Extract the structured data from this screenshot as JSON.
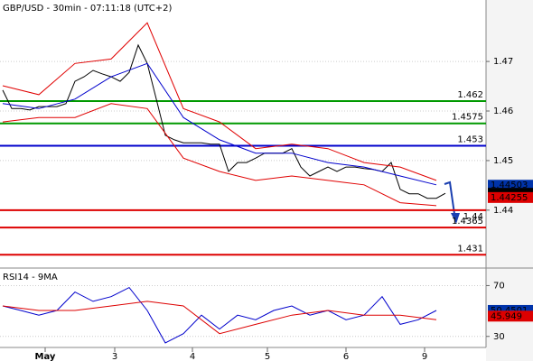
{
  "chart_data": [
    {
      "type": "line",
      "title": "GBP/USD - 30min - 07:11:18 (UTC+2)",
      "xlim": [
        -0.3,
        53.5
      ],
      "ylim": [
        1.4285,
        1.4824
      ],
      "yticks": [
        1.44,
        1.45,
        1.46,
        1.47
      ],
      "grid": true,
      "series": [
        {
          "color": "#000000",
          "x": [
            0,
            1,
            2,
            3,
            4,
            5,
            6,
            7,
            8,
            9,
            10,
            11,
            12,
            13,
            14,
            15,
            16,
            17,
            18,
            19,
            20,
            21,
            22,
            23,
            24,
            25,
            26,
            27,
            28,
            29,
            30,
            31,
            32,
            33,
            34,
            35,
            36,
            37,
            38,
            39,
            40,
            41,
            42,
            43,
            44,
            45,
            46,
            47,
            48,
            49
          ],
          "values": [
            1.4642,
            1.4605,
            1.4605,
            1.4602,
            1.4609,
            1.4609,
            1.4609,
            1.4615,
            1.466,
            1.4669,
            1.4682,
            1.4675,
            1.4669,
            1.466,
            1.4678,
            1.4733,
            1.4696,
            1.4624,
            1.4551,
            1.4542,
            1.4536,
            1.4536,
            1.4536,
            1.4533,
            1.4533,
            1.4478,
            1.4496,
            1.4496,
            1.4505,
            1.4515,
            1.4515,
            1.4515,
            1.4524,
            1.4487,
            1.4469,
            1.4478,
            1.4487,
            1.4478,
            1.4487,
            1.4487,
            1.4484,
            1.4482,
            1.4478,
            1.4496,
            1.4442,
            1.4433,
            1.4433,
            1.4424,
            1.4424,
            1.4434
          ]
        },
        {
          "color": "#e00000",
          "x": [
            0,
            4,
            8,
            12,
            16,
            20,
            24,
            28,
            32,
            36,
            40,
            44,
            48
          ],
          "values": [
            1.4651,
            1.4633,
            1.4696,
            1.4705,
            1.4778,
            1.4605,
            1.4578,
            1.4524,
            1.4533,
            1.4524,
            1.4496,
            1.4487,
            1.446
          ]
        },
        {
          "color": "#e00000",
          "x": [
            0,
            4,
            8,
            12,
            16,
            20,
            24,
            28,
            32,
            36,
            40,
            44,
            48
          ],
          "values": [
            1.4578,
            1.4587,
            1.4587,
            1.4615,
            1.4605,
            1.4505,
            1.4478,
            1.446,
            1.4469,
            1.446,
            1.4451,
            1.4415,
            1.4409
          ]
        },
        {
          "color": "#0000cc",
          "x": [
            0,
            4,
            8,
            12,
            16,
            20,
            24,
            28,
            32,
            36,
            40,
            44,
            48
          ],
          "values": [
            1.4615,
            1.4605,
            1.4624,
            1.4669,
            1.4696,
            1.4587,
            1.4542,
            1.4515,
            1.4515,
            1.4496,
            1.4487,
            1.4469,
            1.4451
          ]
        }
      ],
      "levels": [
        {
          "value": 1.462,
          "color": "#009900"
        },
        {
          "value": 1.4575,
          "color": "#009900"
        },
        {
          "value": 1.453,
          "color": "#0000cc"
        },
        {
          "value": 1.44,
          "color": "#dd0000"
        },
        {
          "value": 1.4365,
          "color": "#dd0000"
        },
        {
          "value": 1.431,
          "color": "#dd0000"
        }
      ],
      "markers": [
        {
          "value": 1.44503,
          "color": "#0033aa"
        },
        {
          "value": 1.4434,
          "color": "#000000"
        },
        {
          "value": 1.44255,
          "color": "#dd0000"
        }
      ]
    },
    {
      "type": "line",
      "title": "RSI14 - 9MA",
      "xlim": [
        -0.3,
        53.5
      ],
      "ylim": [
        21.3,
        83.1
      ],
      "yticks": [
        30,
        70
      ],
      "grid": true,
      "xticks": [
        {
          "value": 4.7,
          "label": "May"
        },
        {
          "value": 12.4,
          "label": "3"
        },
        {
          "value": 21,
          "label": "4"
        },
        {
          "value": 29.3,
          "label": "5"
        },
        {
          "value": 38,
          "label": "6"
        },
        {
          "value": 46.7,
          "label": "9"
        }
      ],
      "series": [
        {
          "color": "#0000cc",
          "x": [
            0,
            2,
            4,
            6,
            8,
            10,
            12,
            14,
            16,
            18,
            20,
            22,
            24,
            26,
            28,
            30,
            32,
            34,
            36,
            38,
            40,
            42,
            44,
            46,
            48
          ],
          "values": [
            54.0,
            50.4,
            46.7,
            50.4,
            64.9,
            57.6,
            61.3,
            68.5,
            50.4,
            24.9,
            32.2,
            46.7,
            35.8,
            46.7,
            43.1,
            50.4,
            54.0,
            46.7,
            50.4,
            43.1,
            46.7,
            61.3,
            39.5,
            43.1,
            50.4
          ]
        },
        {
          "color": "#dd0000",
          "x": [
            0,
            4,
            8,
            12,
            16,
            20,
            24,
            28,
            32,
            36,
            40,
            44,
            48
          ],
          "values": [
            54.0,
            50.4,
            50.4,
            54.0,
            57.6,
            54.0,
            32.2,
            39.5,
            46.7,
            50.4,
            46.7,
            46.7,
            43.1
          ]
        }
      ],
      "markers": [
        {
          "value": 50.4501,
          "color": "#0033aa"
        },
        {
          "value": 45.949,
          "color": "#dd0000"
        }
      ]
    }
  ]
}
